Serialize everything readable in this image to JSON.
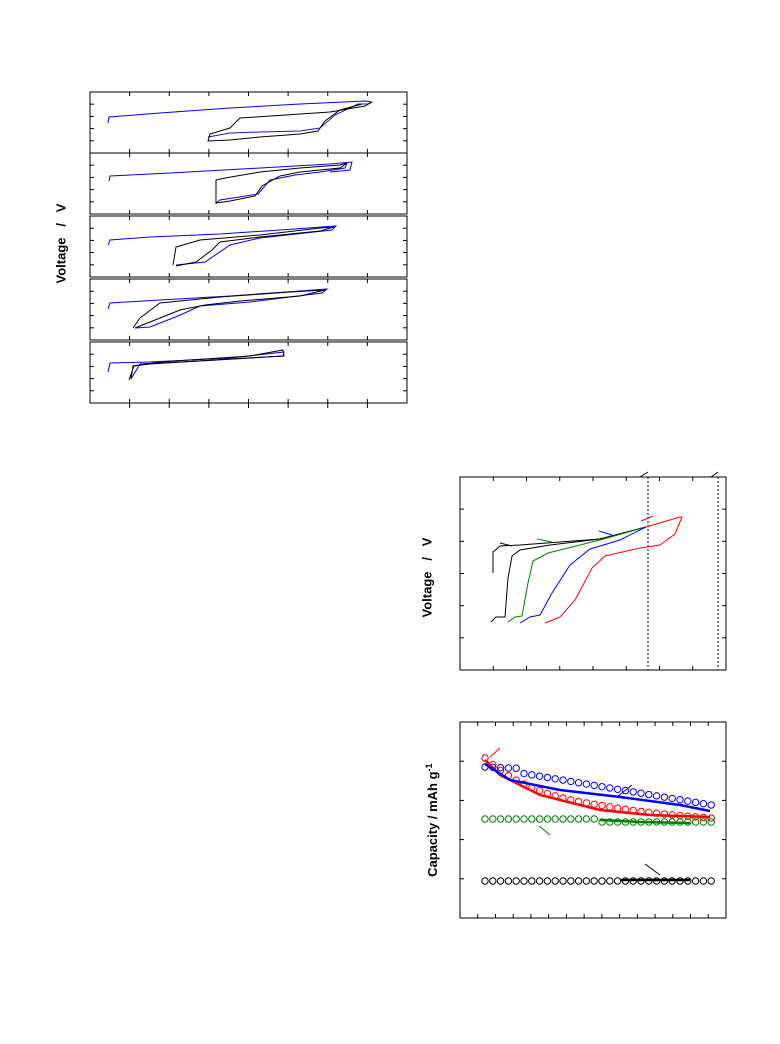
{
  "labels": {
    "voltage_1": "Voltage   /   V",
    "voltage_2": "Voltage   /   V",
    "capacity": "Capacity / mAh g",
    "capacity_sup": "-1"
  },
  "colors": {
    "black": "#000000",
    "blue": "#0000ff",
    "navy": "#1a1ab0",
    "red": "#ff0000",
    "green": "#008000"
  },
  "chart_data": [
    {
      "type": "line",
      "title": "",
      "ylabel": "Voltage   /   V",
      "panels": 5,
      "series": [
        {
          "color": "black"
        },
        {
          "color": "blue"
        }
      ]
    },
    {
      "type": "line",
      "title": "",
      "ylabel": "Voltage   /   V",
      "series": [
        {
          "color": "black"
        },
        {
          "color": "green"
        },
        {
          "color": "blue"
        },
        {
          "color": "red"
        }
      ]
    },
    {
      "type": "scatter",
      "title": "",
      "ylabel": "Capacity / mAh g-1",
      "series": [
        {
          "color": "red"
        },
        {
          "color": "blue"
        },
        {
          "color": "green"
        },
        {
          "color": "black"
        }
      ]
    }
  ]
}
